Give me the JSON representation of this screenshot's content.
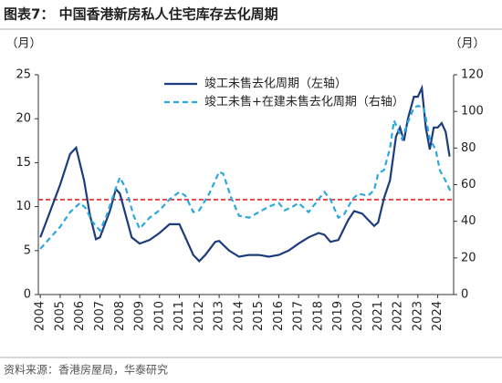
{
  "chart_data": {
    "type": "line",
    "title": "图表7：  中国香港新房私人住宅库存去化周期",
    "y_unit": "（月）",
    "y2_unit": "（月）",
    "source": "资料来源：香港房屋局，华泰研究",
    "xlim": [
      2003.9,
      2024.8
    ],
    "xticks": [
      2004,
      2005,
      2006,
      2007,
      2008,
      2009,
      2010,
      2011,
      2012,
      2013,
      2014,
      2015,
      2016,
      2017,
      2018,
      2019,
      2020,
      2021,
      2022,
      2023,
      2024
    ],
    "ylim": [
      0,
      25
    ],
    "yticks": [
      0,
      5,
      10,
      15,
      20,
      25
    ],
    "y2lim": [
      0,
      120
    ],
    "y2ticks": [
      0,
      20,
      40,
      60,
      80,
      100,
      120
    ],
    "legend": "upper center",
    "reference_line": {
      "value": 10.8,
      "color": "#e8262a"
    },
    "series": [
      {
        "name": "竣工未售去化周期（左轴）",
        "color": "#1d3c7e",
        "axis": "y",
        "x": [
          2004.0,
          2004.5,
          2005.0,
          2005.5,
          2005.8,
          2006.2,
          2006.5,
          2006.8,
          2007.0,
          2007.5,
          2007.8,
          2008.0,
          2008.3,
          2008.6,
          2009.0,
          2009.5,
          2010.0,
          2010.5,
          2011.0,
          2011.3,
          2011.7,
          2012.0,
          2012.3,
          2012.8,
          2013.0,
          2013.5,
          2014.0,
          2014.5,
          2015.0,
          2015.5,
          2016.0,
          2016.5,
          2017.0,
          2017.5,
          2018.0,
          2018.3,
          2018.6,
          2019.0,
          2019.5,
          2019.8,
          2020.2,
          2020.5,
          2020.8,
          2021.0,
          2021.3,
          2021.6,
          2021.9,
          2022.1,
          2022.3,
          2022.5,
          2022.8,
          2023.0,
          2023.2,
          2023.4,
          2023.6,
          2023.8,
          2024.0,
          2024.2,
          2024.4,
          2024.6
        ],
        "values": [
          6.5,
          9.5,
          12.5,
          16,
          16.7,
          13,
          9,
          6.3,
          6.5,
          9.5,
          12,
          11.5,
          9,
          6.5,
          5.8,
          6.2,
          7,
          8,
          8,
          6.5,
          4.5,
          3.8,
          4.5,
          6,
          6.1,
          5,
          4.3,
          4.5,
          4.5,
          4.3,
          4.5,
          5,
          5.8,
          6.5,
          7.0,
          6.8,
          6,
          6.2,
          8.5,
          9.5,
          9.2,
          8.5,
          7.8,
          8.2,
          11,
          13,
          18,
          19,
          17.5,
          20,
          22.5,
          22.5,
          23.5,
          19,
          16.5,
          19,
          19,
          19.5,
          18.5,
          15.7
        ]
      },
      {
        "name": "竣工未售+在建未售去化周期（右轴）",
        "color": "#2aa8e0",
        "axis": "y2",
        "x": [
          2004.0,
          2004.5,
          2005.0,
          2005.5,
          2006.0,
          2006.3,
          2006.6,
          2007.0,
          2007.3,
          2007.7,
          2008.0,
          2008.3,
          2008.7,
          2009.0,
          2009.5,
          2010.0,
          2010.5,
          2011.0,
          2011.3,
          2011.7,
          2012.0,
          2012.5,
          2013.0,
          2013.2,
          2013.6,
          2014.0,
          2014.5,
          2015.0,
          2015.5,
          2016.0,
          2016.3,
          2016.7,
          2017.0,
          2017.5,
          2018.0,
          2018.3,
          2018.6,
          2019.0,
          2019.3,
          2019.7,
          2020.0,
          2020.5,
          2020.8,
          2021.0,
          2021.3,
          2021.6,
          2021.8,
          2022.0,
          2022.2,
          2022.5,
          2022.8,
          2023.0,
          2023.3,
          2023.6,
          2023.9,
          2024.1,
          2024.4,
          2024.7
        ],
        "values": [
          25,
          31,
          37,
          45,
          50,
          47,
          40,
          35,
          42,
          55,
          64,
          58,
          43,
          36,
          42,
          46,
          52,
          56,
          54,
          45,
          46,
          55,
          67,
          66,
          53,
          43,
          42,
          45,
          48,
          50,
          46,
          48,
          50,
          45,
          52,
          56,
          52,
          42,
          44,
          52,
          55,
          54,
          57,
          66,
          68,
          80,
          95,
          90,
          85,
          94,
          102,
          103,
          102,
          85,
          79,
          68,
          62,
          55
        ]
      }
    ]
  }
}
